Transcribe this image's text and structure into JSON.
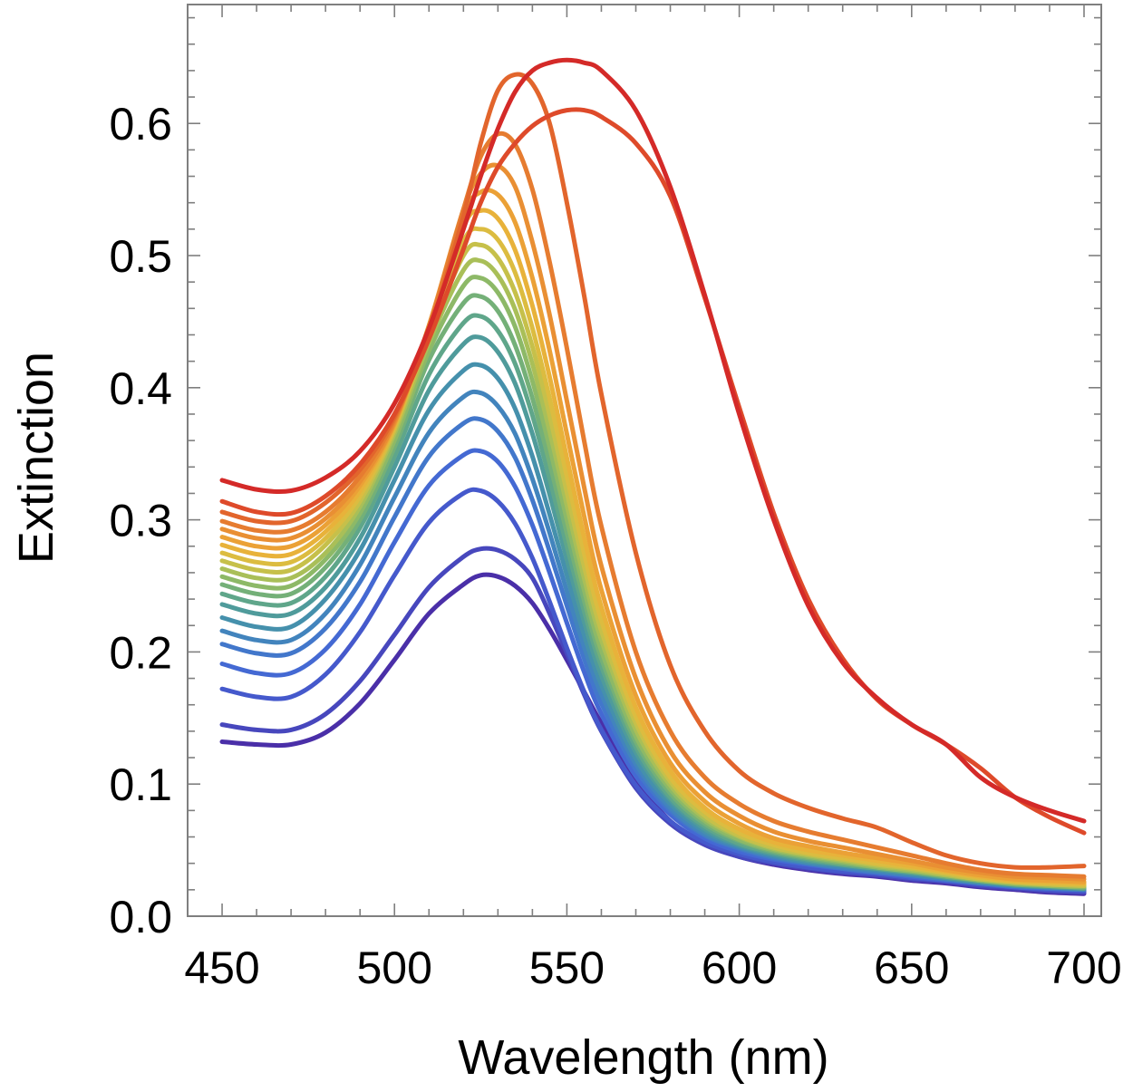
{
  "chart_data": {
    "type": "line",
    "xlabel": "Wavelength (nm)",
    "ylabel": "Extinction",
    "xlim": [
      440,
      705
    ],
    "ylim": [
      0.0,
      0.69
    ],
    "x_ticks": [
      450,
      500,
      550,
      600,
      650,
      700
    ],
    "x_tick_labels": [
      "450",
      "500",
      "550",
      "600",
      "650",
      "700"
    ],
    "y_ticks": [
      0.0,
      0.1,
      0.2,
      0.3,
      0.4,
      0.5,
      0.6
    ],
    "y_tick_labels": [
      "0.0",
      "0.1",
      "0.2",
      "0.3",
      "0.4",
      "0.5",
      "0.6"
    ],
    "grid": false,
    "legend": "none",
    "x": [
      450,
      460,
      470,
      480,
      490,
      500,
      510,
      520,
      525,
      530,
      535,
      540,
      545,
      550,
      555,
      560,
      570,
      580,
      590,
      600,
      610,
      620,
      630,
      640,
      650,
      660,
      670,
      680,
      690,
      700
    ],
    "series": [
      {
        "color": "#d42a28",
        "values": [
          0.33,
          0.323,
          0.322,
          0.332,
          0.352,
          0.388,
          0.445,
          0.52,
          0.56,
          0.596,
          0.624,
          0.64,
          0.646,
          0.648,
          0.646,
          0.64,
          0.61,
          0.552,
          0.47,
          0.38,
          0.3,
          0.235,
          0.192,
          0.165,
          0.145,
          0.13,
          0.105,
          0.09,
          0.08,
          0.072
        ]
      },
      {
        "color": "#de4a2a",
        "values": [
          0.314,
          0.306,
          0.305,
          0.318,
          0.342,
          0.38,
          0.437,
          0.505,
          0.54,
          0.567,
          0.585,
          0.598,
          0.606,
          0.61,
          0.61,
          0.605,
          0.585,
          0.545,
          0.468,
          0.385,
          0.305,
          0.24,
          0.195,
          0.164,
          0.145,
          0.13,
          0.112,
          0.09,
          0.075,
          0.063
        ]
      },
      {
        "color": "#e2652c",
        "values": [
          0.306,
          0.299,
          0.299,
          0.313,
          0.338,
          0.378,
          0.442,
          0.53,
          0.585,
          0.625,
          0.637,
          0.63,
          0.6,
          0.54,
          0.47,
          0.395,
          0.275,
          0.19,
          0.14,
          0.11,
          0.093,
          0.082,
          0.074,
          0.067,
          0.056,
          0.046,
          0.04,
          0.037,
          0.037,
          0.038
        ]
      },
      {
        "color": "#e67c30",
        "values": [
          0.299,
          0.292,
          0.292,
          0.306,
          0.333,
          0.376,
          0.445,
          0.535,
          0.575,
          0.592,
          0.584,
          0.55,
          0.495,
          0.43,
          0.36,
          0.295,
          0.2,
          0.14,
          0.105,
          0.085,
          0.072,
          0.064,
          0.058,
          0.052,
          0.046,
          0.04,
          0.035,
          0.032,
          0.031,
          0.03
        ]
      },
      {
        "color": "#e98f33",
        "values": [
          0.293,
          0.286,
          0.286,
          0.301,
          0.329,
          0.374,
          0.447,
          0.535,
          0.562,
          0.568,
          0.552,
          0.51,
          0.455,
          0.39,
          0.325,
          0.265,
          0.18,
          0.125,
          0.094,
          0.076,
          0.064,
          0.057,
          0.052,
          0.047,
          0.042,
          0.037,
          0.033,
          0.03,
          0.029,
          0.028
        ]
      },
      {
        "color": "#eba136",
        "values": [
          0.287,
          0.28,
          0.28,
          0.296,
          0.326,
          0.373,
          0.447,
          0.53,
          0.548,
          0.546,
          0.525,
          0.483,
          0.428,
          0.365,
          0.303,
          0.247,
          0.167,
          0.116,
          0.087,
          0.07,
          0.059,
          0.053,
          0.048,
          0.044,
          0.04,
          0.035,
          0.031,
          0.028,
          0.027,
          0.026
        ]
      },
      {
        "color": "#e8b23a",
        "values": [
          0.281,
          0.274,
          0.274,
          0.291,
          0.322,
          0.372,
          0.446,
          0.522,
          0.534,
          0.528,
          0.504,
          0.462,
          0.408,
          0.347,
          0.287,
          0.234,
          0.158,
          0.11,
          0.082,
          0.066,
          0.056,
          0.05,
          0.046,
          0.042,
          0.038,
          0.034,
          0.03,
          0.027,
          0.026,
          0.025
        ]
      },
      {
        "color": "#dcbc40",
        "values": [
          0.275,
          0.268,
          0.268,
          0.286,
          0.318,
          0.37,
          0.443,
          0.511,
          0.52,
          0.512,
          0.487,
          0.445,
          0.392,
          0.333,
          0.275,
          0.224,
          0.151,
          0.105,
          0.079,
          0.063,
          0.054,
          0.048,
          0.044,
          0.04,
          0.037,
          0.033,
          0.029,
          0.026,
          0.025,
          0.024
        ]
      },
      {
        "color": "#c6c04a",
        "values": [
          0.269,
          0.262,
          0.262,
          0.281,
          0.314,
          0.368,
          0.439,
          0.5,
          0.508,
          0.498,
          0.472,
          0.431,
          0.379,
          0.321,
          0.265,
          0.216,
          0.146,
          0.102,
          0.076,
          0.061,
          0.052,
          0.047,
          0.043,
          0.039,
          0.036,
          0.032,
          0.028,
          0.026,
          0.024,
          0.023
        ]
      },
      {
        "color": "#a9bf58",
        "values": [
          0.263,
          0.256,
          0.256,
          0.275,
          0.31,
          0.365,
          0.434,
          0.489,
          0.496,
          0.485,
          0.459,
          0.418,
          0.367,
          0.311,
          0.256,
          0.209,
          0.141,
          0.099,
          0.074,
          0.06,
          0.051,
          0.046,
          0.042,
          0.038,
          0.035,
          0.031,
          0.028,
          0.025,
          0.024,
          0.023
        ]
      },
      {
        "color": "#8db967",
        "values": [
          0.257,
          0.25,
          0.25,
          0.27,
          0.305,
          0.36,
          0.428,
          0.477,
          0.483,
          0.472,
          0.446,
          0.405,
          0.355,
          0.3,
          0.247,
          0.201,
          0.136,
          0.096,
          0.072,
          0.058,
          0.05,
          0.045,
          0.041,
          0.037,
          0.034,
          0.031,
          0.027,
          0.025,
          0.023,
          0.022
        ]
      },
      {
        "color": "#74b078",
        "values": [
          0.251,
          0.244,
          0.244,
          0.264,
          0.3,
          0.355,
          0.421,
          0.464,
          0.469,
          0.458,
          0.432,
          0.392,
          0.343,
          0.29,
          0.239,
          0.195,
          0.132,
          0.093,
          0.07,
          0.057,
          0.049,
          0.044,
          0.04,
          0.037,
          0.034,
          0.03,
          0.027,
          0.024,
          0.023,
          0.022
        ]
      },
      {
        "color": "#5fa68a",
        "values": [
          0.244,
          0.237,
          0.237,
          0.257,
          0.294,
          0.348,
          0.41,
          0.449,
          0.454,
          0.443,
          0.418,
          0.379,
          0.331,
          0.28,
          0.231,
          0.189,
          0.128,
          0.09,
          0.068,
          0.055,
          0.048,
          0.043,
          0.039,
          0.036,
          0.033,
          0.03,
          0.027,
          0.024,
          0.023,
          0.021
        ]
      },
      {
        "color": "#4f9b9b",
        "values": [
          0.236,
          0.229,
          0.229,
          0.249,
          0.286,
          0.34,
          0.398,
          0.433,
          0.438,
          0.427,
          0.403,
          0.365,
          0.319,
          0.27,
          0.223,
          0.182,
          0.124,
          0.088,
          0.066,
          0.054,
          0.047,
          0.042,
          0.039,
          0.036,
          0.033,
          0.029,
          0.026,
          0.024,
          0.022,
          0.021
        ]
      },
      {
        "color": "#4590ac",
        "values": [
          0.226,
          0.219,
          0.219,
          0.24,
          0.277,
          0.33,
          0.383,
          0.413,
          0.417,
          0.407,
          0.384,
          0.348,
          0.304,
          0.258,
          0.213,
          0.175,
          0.119,
          0.085,
          0.064,
          0.053,
          0.046,
          0.041,
          0.038,
          0.035,
          0.032,
          0.029,
          0.026,
          0.023,
          0.022,
          0.021
        ]
      },
      {
        "color": "#4284bd",
        "values": [
          0.216,
          0.209,
          0.209,
          0.229,
          0.266,
          0.317,
          0.366,
          0.393,
          0.396,
          0.386,
          0.365,
          0.331,
          0.29,
          0.246,
          0.204,
          0.168,
          0.115,
          0.082,
          0.062,
          0.052,
          0.045,
          0.04,
          0.037,
          0.034,
          0.031,
          0.028,
          0.025,
          0.023,
          0.022,
          0.02
        ]
      },
      {
        "color": "#4277cb",
        "values": [
          0.206,
          0.199,
          0.199,
          0.218,
          0.253,
          0.302,
          0.348,
          0.373,
          0.376,
          0.367,
          0.347,
          0.315,
          0.276,
          0.235,
          0.195,
          0.161,
          0.111,
          0.08,
          0.061,
          0.051,
          0.044,
          0.04,
          0.036,
          0.033,
          0.031,
          0.028,
          0.025,
          0.023,
          0.021,
          0.02
        ]
      },
      {
        "color": "#4469d3",
        "values": [
          0.191,
          0.184,
          0.184,
          0.202,
          0.236,
          0.283,
          0.326,
          0.349,
          0.352,
          0.344,
          0.325,
          0.296,
          0.26,
          0.222,
          0.185,
          0.153,
          0.106,
          0.077,
          0.059,
          0.049,
          0.043,
          0.039,
          0.036,
          0.033,
          0.03,
          0.027,
          0.025,
          0.022,
          0.021,
          0.02
        ]
      },
      {
        "color": "#4559cc",
        "values": [
          0.172,
          0.166,
          0.166,
          0.183,
          0.215,
          0.258,
          0.298,
          0.32,
          0.322,
          0.314,
          0.297,
          0.271,
          0.238,
          0.203,
          0.17,
          0.141,
          0.099,
          0.072,
          0.056,
          0.047,
          0.041,
          0.037,
          0.034,
          0.032,
          0.029,
          0.027,
          0.024,
          0.022,
          0.02,
          0.019
        ]
      },
      {
        "color": "#4747bd",
        "values": [
          0.145,
          0.141,
          0.141,
          0.153,
          0.178,
          0.213,
          0.249,
          0.272,
          0.278,
          0.277,
          0.27,
          0.256,
          0.229,
          0.199,
          0.168,
          0.14,
          0.097,
          0.07,
          0.054,
          0.045,
          0.04,
          0.036,
          0.033,
          0.031,
          0.028,
          0.026,
          0.023,
          0.021,
          0.019,
          0.018
        ]
      },
      {
        "color": "#4a2fa8",
        "values": [
          0.132,
          0.13,
          0.13,
          0.139,
          0.161,
          0.194,
          0.229,
          0.251,
          0.258,
          0.257,
          0.25,
          0.237,
          0.217,
          0.194,
          0.17,
          0.146,
          0.103,
          0.072,
          0.055,
          0.045,
          0.039,
          0.035,
          0.032,
          0.03,
          0.027,
          0.025,
          0.022,
          0.02,
          0.018,
          0.017
        ]
      }
    ]
  }
}
